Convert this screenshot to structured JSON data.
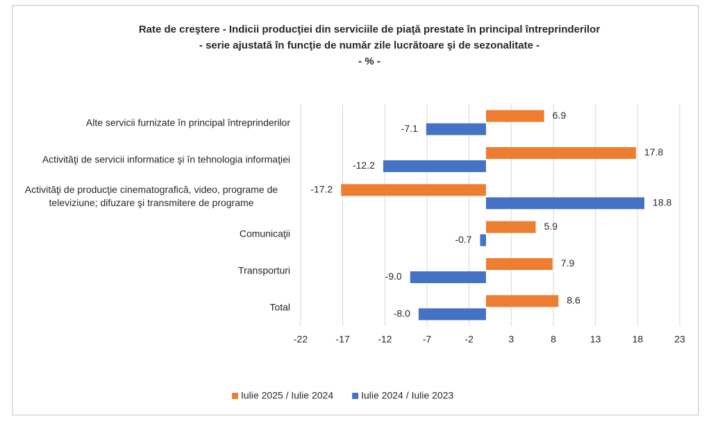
{
  "chart_data": {
    "type": "hbar",
    "title": "Rate de creştere - Indicii producţiei din serviciile de piaţă prestate în principal întreprinderilor",
    "subtitle": "- serie ajustată în funcţie de număr zile lucrătoare şi de sezonalitate -",
    "unit": "- % -",
    "categories": [
      "Alte servicii furnizate în principal întreprinderilor",
      "Activităţi de servicii informatice şi  în tehnologia informaţiei",
      "Activităţi de producţie cinematografică, video, programe de televiziune; difuzare şi transmitere de programe",
      "Comunicaţii",
      "Transporturi",
      "Total"
    ],
    "series": [
      {
        "name": "Iulie 2025 / Iulie 2024",
        "color": "#ed7d31",
        "values": [
          6.9,
          17.8,
          -17.2,
          5.9,
          7.9,
          8.6
        ],
        "value_labels": [
          "6.9",
          "17.8",
          "-17.2",
          "5.9",
          "7.9",
          "8.6"
        ]
      },
      {
        "name": "Iulie 2024 / Iulie 2023",
        "color": "#4472c4",
        "values": [
          -7.1,
          -12.2,
          18.8,
          -0.7,
          -9.0,
          -8.0
        ],
        "value_labels": [
          "-7.1",
          "-12.2",
          "18.8",
          "-0.7",
          "-9.0",
          "-8.0"
        ]
      }
    ],
    "xlim": [
      -22,
      23
    ],
    "xticks": [
      -22,
      -17,
      -12,
      -7,
      -2,
      3,
      8,
      13,
      18,
      23
    ],
    "grid": true,
    "legend": "bottom"
  }
}
